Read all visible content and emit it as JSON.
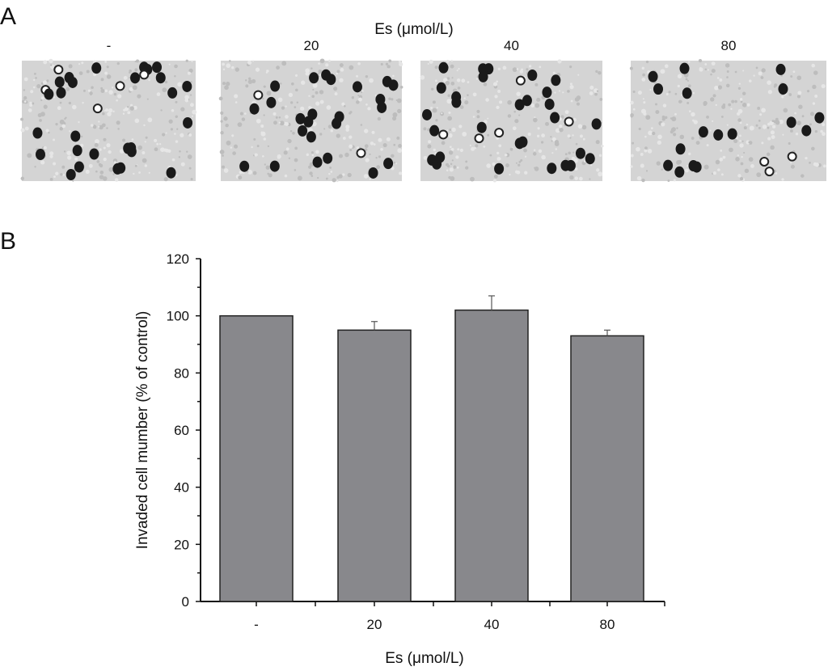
{
  "panel_a": {
    "label": "A",
    "title": "Es (μmol/L)",
    "images": [
      {
        "label": "-",
        "cell_count": 32
      },
      {
        "label": "20",
        "cell_count": 26
      },
      {
        "label": "40",
        "cell_count": 34
      },
      {
        "label": "80",
        "cell_count": 20
      }
    ],
    "image_background": "#d4d4d4",
    "cell_color": "#1a1a1a"
  },
  "panel_b": {
    "label": "B"
  },
  "chart_data": {
    "type": "bar",
    "categories": [
      "-",
      "20",
      "40",
      "80"
    ],
    "values": [
      100,
      95,
      102,
      93
    ],
    "error_upper": [
      0,
      3,
      5,
      2
    ],
    "xlabel": "Es (μmol/L)",
    "ylabel": "Invaded cell mumber (% of control)",
    "ylim": [
      0,
      120
    ],
    "yticks": [
      0,
      20,
      40,
      60,
      80,
      100,
      120
    ],
    "grid": false,
    "bar_color": "#88888c",
    "edge_color": "#222222"
  }
}
